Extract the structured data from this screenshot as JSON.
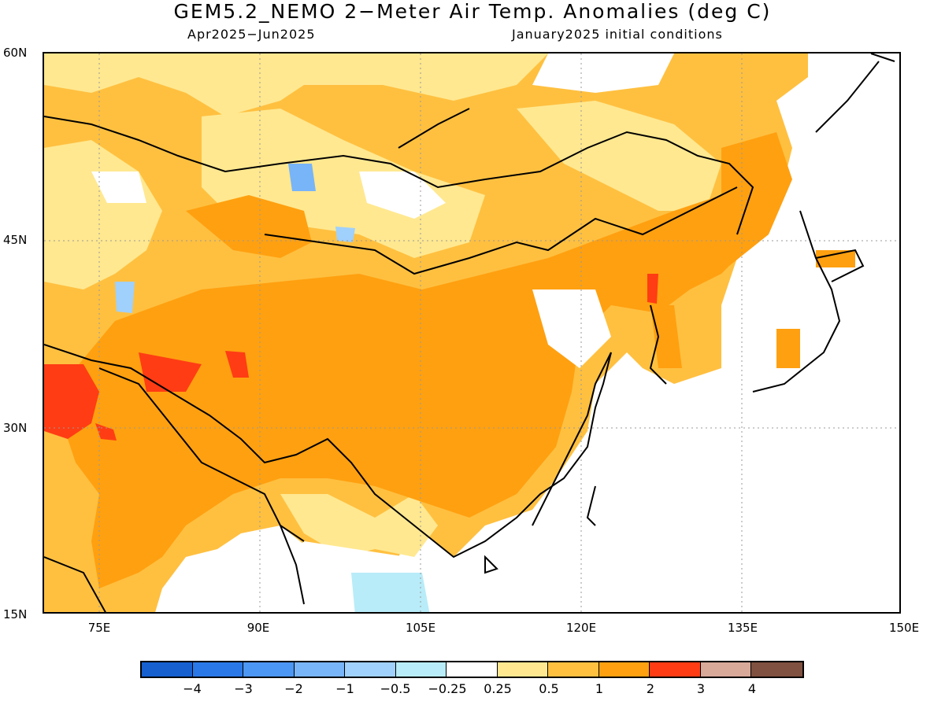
{
  "title": "GEM5.2_NEMO 2−Meter Air Temp. Anomalies (deg C)",
  "subtitle_left": "Apr2025−Jun2025",
  "subtitle_right": "January2025 initial conditions",
  "lat_labels": [
    "60N",
    "45N",
    "30N",
    "15N"
  ],
  "lon_labels": [
    "75E",
    "90E",
    "105E",
    "120E",
    "135E",
    "150E"
  ],
  "colorbar": {
    "colors": [
      "#1660d0",
      "#2a78e8",
      "#4c96f4",
      "#78b4f8",
      "#a0d0fc",
      "#b8ecf8",
      "#ffffff",
      "#ffe890",
      "#ffc040",
      "#ffa010",
      "#ff3c14",
      "#d8a898",
      "#805040"
    ],
    "labels": [
      "−4",
      "−3",
      "−2",
      "−1",
      "−0.5",
      "−0.25",
      "0.25",
      "0.5",
      "1",
      "2",
      "3",
      "4"
    ]
  },
  "map": {
    "colors": {
      "lightyellow": "#ffe890",
      "lightorange": "#ffc040",
      "orange": "#ffa010",
      "red": "#ff3c14",
      "lightblue": "#b8ecf8",
      "blue": "#78b4f8",
      "land_line": "#000000",
      "grid": "#999999"
    }
  }
}
